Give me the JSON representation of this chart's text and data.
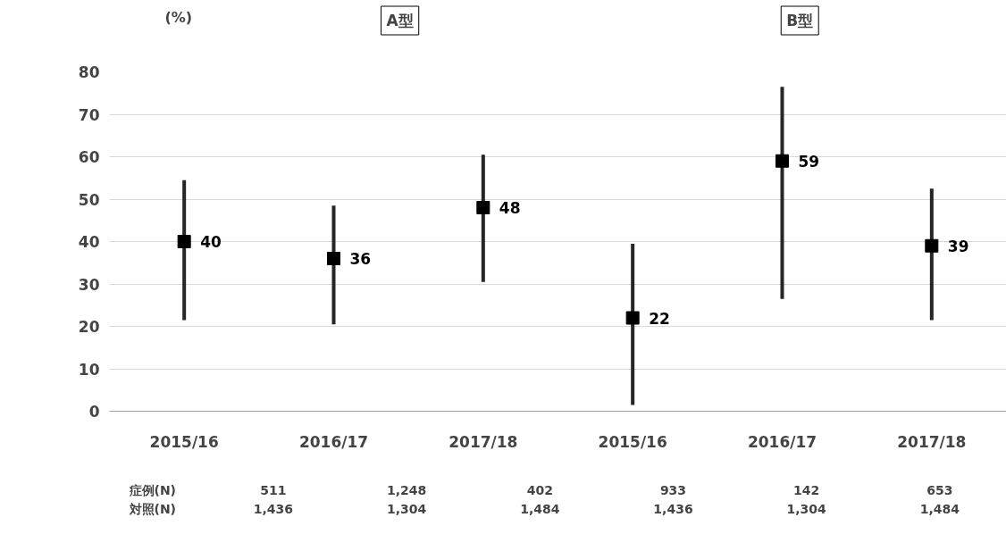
{
  "chart_data": {
    "type": "scatter",
    "ylabel": "(%)",
    "categories": [
      "2015/16",
      "2016/17",
      "2017/18",
      "2015/16",
      "2016/17",
      "2017/18"
    ],
    "series": [
      {
        "color": "#000000",
        "values": [
          40,
          36,
          48,
          22,
          59,
          39
        ],
        "errors": [
          [
            21.5,
            54.5
          ],
          [
            20.5,
            48.5
          ],
          [
            30.5,
            60.5
          ],
          [
            1.5,
            39.5
          ],
          [
            26.5,
            76.5
          ],
          [
            21.5,
            52.5
          ]
        ]
      }
    ],
    "ylim": [
      0,
      80
    ],
    "yticks": [
      0,
      10,
      20,
      30,
      40,
      50,
      60,
      70,
      80
    ],
    "grid": "y",
    "marker": "square",
    "data_labels": true,
    "annotations": [
      "A型",
      "B型",
      "症例(N)",
      "対照(N)",
      "511",
      "1,248",
      "402",
      "933",
      "142",
      "653",
      "1,436",
      "1,304",
      "1,484",
      "1,436",
      "1,304",
      "1,484"
    ]
  }
}
